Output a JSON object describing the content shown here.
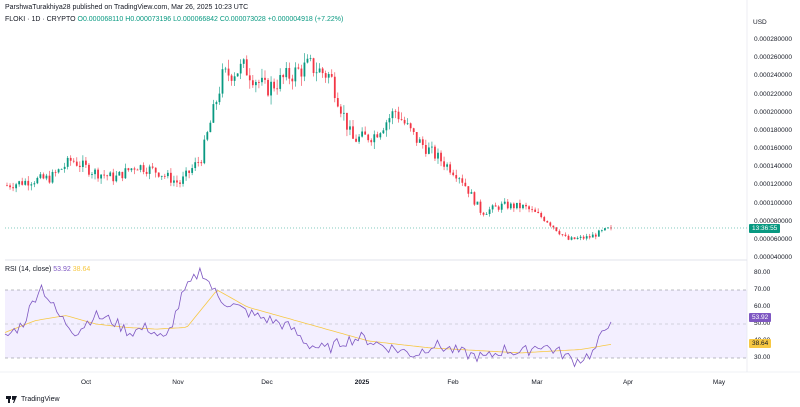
{
  "header": {
    "published": "ParshwaTurakhiya28 published on TradingView.com, Mar 26, 2025 10:23 UTC"
  },
  "symbol": {
    "name": "FLOKI · 1D · CRYPTO",
    "open": "O0.000068110",
    "high": "H0.000073196",
    "low": "L0.000066842",
    "close": "C0.000073028",
    "change": "+0.000004918 (+7.22%)"
  },
  "rsi_legend": {
    "name": "RSI (14, close)",
    "value": "53.92",
    "ma": "38.64"
  },
  "axis": {
    "currency": "USD",
    "price_ticks": [
      "0.000280000",
      "0.000260000",
      "0.000240000",
      "0.000220000",
      "0.000200000",
      "0.000180000",
      "0.000160000",
      "0.000140000",
      "0.000120000",
      "0.000100000",
      "0.000080000",
      "0.000060000",
      "0.000040000"
    ],
    "rsi_ticks": [
      "80.00",
      "70.00",
      "60.00",
      "50.00",
      "40.00",
      "30.00"
    ],
    "time_ticks": [
      "Oct",
      "Nov",
      "Dec",
      "2025",
      "Feb",
      "Mar",
      "Apr",
      "May"
    ]
  },
  "tags": {
    "countdown": "13:36:55",
    "rsi_value": "53.92",
    "rsi_ma": "38.64"
  },
  "colors": {
    "up": "#089981",
    "down": "#f23645",
    "rsi_line": "#7e57c2",
    "rsi_ma": "#f7c843",
    "rsi_band": "#f3efff"
  },
  "footer": {
    "brand": "TradingView"
  },
  "chart_data": [
    {
      "type": "candlestick",
      "title": "",
      "ylabel": "USD",
      "ylim": [
        4e-05,
        0.00029
      ],
      "x_ticks": [
        "Oct",
        "Nov",
        "Dec",
        "2025",
        "Feb",
        "Mar",
        "Apr",
        "May"
      ],
      "trend_anchors_close": [
        0.00012,
        0.000125,
        0.000128,
        0.000148,
        0.000135,
        0.000128,
        0.000142,
        0.000135,
        0.000122,
        0.00015,
        0.00024,
        0.00025,
        0.000226,
        0.00024,
        0.000252,
        0.00024,
        0.00017,
        0.000175,
        0.000202,
        0.00017,
        0.00015,
        0.00013,
        9e-05,
        9.8e-05,
        9.6e-05,
        8.2e-05,
        6e-05,
        6.3e-05,
        7.3e-05
      ],
      "last_close": 7.3028e-05
    },
    {
      "type": "line",
      "title": "RSI (14, close)",
      "ylim": [
        25,
        84
      ],
      "series": [
        {
          "name": "RSI",
          "anchors": [
            42,
            50,
            73,
            55,
            45,
            55,
            52,
            45,
            48,
            40,
            68,
            82,
            65,
            60,
            55,
            52,
            48,
            38,
            35,
            40,
            42,
            38,
            35,
            32,
            38,
            35,
            32,
            30,
            35,
            33,
            38,
            34,
            28,
            33,
            54
          ]
        },
        {
          "name": "MA",
          "anchors": [
            45,
            52,
            55,
            50,
            48,
            47,
            48,
            70,
            60,
            55,
            50,
            45,
            40,
            38,
            36,
            35,
            34,
            33,
            34,
            35,
            38
          ]
        }
      ],
      "levels": [
        70,
        50,
        30
      ],
      "last_rsi": 53.92,
      "last_ma": 38.64
    }
  ]
}
